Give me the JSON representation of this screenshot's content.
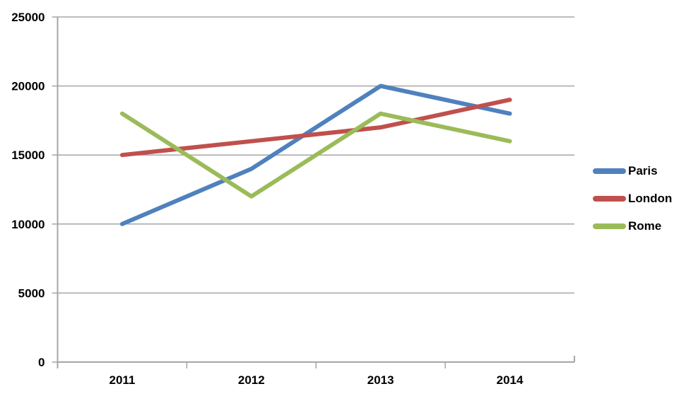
{
  "page": {
    "background_color": "#ffffff",
    "text_color": "#000000"
  },
  "chart_data": {
    "type": "line",
    "title": "",
    "xlabel": "",
    "ylabel": "",
    "categories": [
      "2011",
      "2012",
      "2013",
      "2014"
    ],
    "series": [
      {
        "name": "Paris",
        "color": "#4f81bd",
        "values": [
          10000,
          14000,
          20000,
          18000
        ]
      },
      {
        "name": "London",
        "color": "#c0504d",
        "values": [
          15000,
          16000,
          17000,
          19000
        ]
      },
      {
        "name": "Rome",
        "color": "#9bbb59",
        "values": [
          18000,
          12000,
          18000,
          16000
        ]
      }
    ],
    "ylim": [
      0,
      25000
    ],
    "ytick_step": 5000,
    "ytick_labels": [
      "0",
      "5000",
      "10000",
      "15000",
      "20000",
      "25000"
    ],
    "grid": "horizontal",
    "legend_position": "right",
    "grid_color": "#a6a6a6",
    "axis_color": "#a6a6a6",
    "line_width": 6
  }
}
